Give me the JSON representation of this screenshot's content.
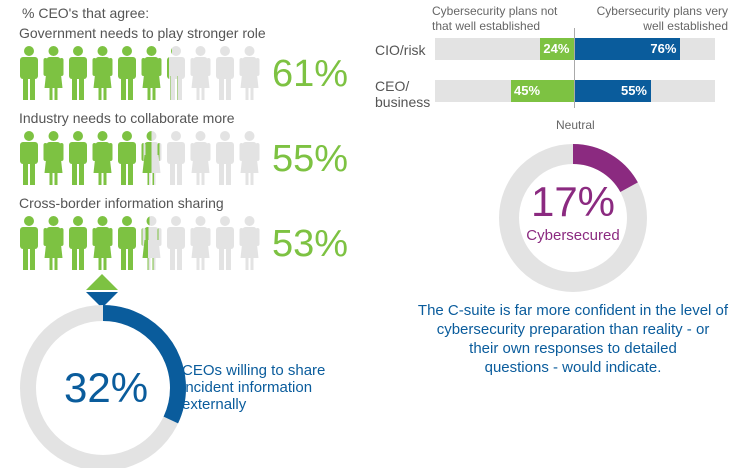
{
  "colors": {
    "green": "#7dc242",
    "blue": "#0a5c9c",
    "purple": "#8b2a80",
    "gray": "#e3e3e3"
  },
  "chart_data": [
    {
      "type": "pictogram",
      "title": "% CEO's that agree:",
      "people_count": 10,
      "rows": [
        {
          "label": "Government needs to play stronger role",
          "value": 61,
          "value_label": "61%"
        },
        {
          "label": "Industry needs to collaborate more",
          "value": 55,
          "value_label": "55%"
        },
        {
          "label": "Cross-border information sharing",
          "value": 53,
          "value_label": "53%"
        }
      ]
    },
    {
      "type": "pie",
      "variant": "donut",
      "value": 32,
      "value_label": "32%",
      "caption": "CEOs willing to share incident information externally"
    },
    {
      "type": "bar",
      "orientation": "horizontal-diverging",
      "left_header": "Cybersecurity plans not that well established",
      "right_header": "Cybersecurity plans very well established",
      "center_label": "Neutral",
      "categories": [
        "CIO/risk",
        "CEO/ business"
      ],
      "series": [
        {
          "name": "not that well established",
          "values": [
            24,
            45
          ],
          "labels": [
            "24%",
            "45%"
          ]
        },
        {
          "name": "very well established",
          "values": [
            76,
            55
          ],
          "labels": [
            "76%",
            "55%"
          ]
        }
      ],
      "xlim": [
        -100,
        100
      ]
    },
    {
      "type": "pie",
      "variant": "donut",
      "value": 17,
      "value_label": "17%",
      "caption": "Cybersecured"
    }
  ],
  "note": "The C-suite is far more confident in the level of cybersecurity preparation than reality - or their own responses to detailed questions - would indicate.",
  "note_lines": [
    "The C-suite is far more confident in the level of",
    "cybersecurity preparation than reality - or",
    "their own responses to detailed",
    "questions - would indicate."
  ],
  "icons": {
    "person": "person-icon",
    "diamond": "up-down-diamond-icon"
  }
}
